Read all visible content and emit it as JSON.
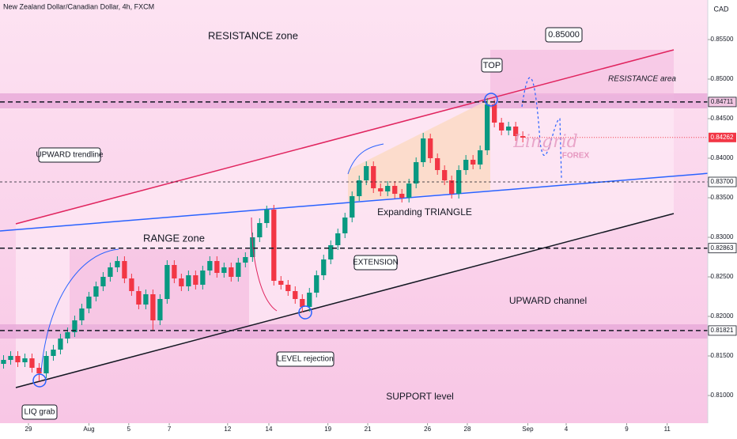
{
  "chart_data": {
    "type": "candlestick",
    "title": "New Zealand Dollar/Canadian Dollar, 4h, FXCM",
    "currency": "CAD",
    "xlim": [
      -0.5,
      99
    ],
    "ylim": [
      0.8065,
      0.86
    ],
    "xticks": [
      {
        "value": 3.5,
        "label": "29"
      },
      {
        "value": 12,
        "label": "Aug"
      },
      {
        "value": 17.6,
        "label": "5"
      },
      {
        "value": 23.3,
        "label": "7"
      },
      {
        "value": 31.5,
        "label": "12"
      },
      {
        "value": 37.3,
        "label": "14"
      },
      {
        "value": 45.6,
        "label": "19"
      },
      {
        "value": 51.2,
        "label": "21"
      },
      {
        "value": 59.6,
        "label": "26"
      },
      {
        "value": 65.2,
        "label": "28"
      },
      {
        "value": 73.7,
        "label": "Sep"
      },
      {
        "value": 79.1,
        "label": "4"
      },
      {
        "value": 87.6,
        "label": "9"
      },
      {
        "value": 93.3,
        "label": "11"
      }
    ],
    "yticks": [
      {
        "value": 0.855,
        "label": "0.85500"
      },
      {
        "value": 0.85,
        "label": "0.85000"
      },
      {
        "value": 0.845,
        "label": "0.84500"
      },
      {
        "value": 0.84,
        "label": "0.84000"
      },
      {
        "value": 0.835,
        "label": "0.83500"
      },
      {
        "value": 0.83,
        "label": "0.83000"
      },
      {
        "value": 0.825,
        "label": "0.82500"
      },
      {
        "value": 0.82,
        "label": "0.82000"
      },
      {
        "value": 0.815,
        "label": "0.81500"
      },
      {
        "value": 0.81,
        "label": "0.81000"
      }
    ],
    "levels": [
      {
        "value": 0.84711,
        "label": "0.84711"
      },
      {
        "value": 0.837,
        "label": "0.83700"
      },
      {
        "value": 0.82863,
        "label": "0.82863"
      },
      {
        "value": 0.81821,
        "label": "0.81821"
      }
    ],
    "current_price": {
      "value": 0.84262,
      "label": "0.84262"
    },
    "up_color": "#089981",
    "down_color": "#f23645",
    "open": [
      0.814,
      0.8145,
      0.815,
      0.8142,
      0.8147,
      0.8135,
      0.8128,
      0.815,
      0.8158,
      0.8172,
      0.818,
      0.8195,
      0.821,
      0.8225,
      0.8238,
      0.825,
      0.8262,
      0.827,
      0.8248,
      0.8232,
      0.8215,
      0.8228,
      0.8195,
      0.8222,
      0.8265,
      0.8248,
      0.8238,
      0.8252,
      0.824,
      0.8258,
      0.827,
      0.8255,
      0.8262,
      0.825,
      0.8268,
      0.8275,
      0.83,
      0.8318,
      0.8335,
      0.8245,
      0.824,
      0.8232,
      0.8222,
      0.8212,
      0.823,
      0.8252,
      0.8272,
      0.829,
      0.8305,
      0.8325,
      0.8352,
      0.8372,
      0.839,
      0.8362,
      0.8358,
      0.8365,
      0.8355,
      0.835,
      0.8368,
      0.8395,
      0.8425,
      0.84,
      0.8385,
      0.8372,
      0.8355,
      0.8385,
      0.8398,
      0.8392,
      0.841,
      0.8468,
      0.8445,
      0.8435,
      0.844,
      0.8428
    ],
    "high": [
      0.8151,
      0.8156,
      0.8156,
      0.8153,
      0.8153,
      0.8141,
      0.8156,
      0.8164,
      0.8178,
      0.8186,
      0.8201,
      0.8216,
      0.8231,
      0.8244,
      0.8256,
      0.8268,
      0.8276,
      0.8276,
      0.8254,
      0.8238,
      0.8234,
      0.8234,
      0.8228,
      0.8271,
      0.8271,
      0.8254,
      0.8258,
      0.8258,
      0.8264,
      0.8276,
      0.8276,
      0.8268,
      0.8268,
      0.8274,
      0.8281,
      0.8306,
      0.8324,
      0.834,
      0.8341,
      0.8251,
      0.8246,
      0.8238,
      0.8228,
      0.8236,
      0.8258,
      0.8278,
      0.8296,
      0.8311,
      0.8331,
      0.8358,
      0.8378,
      0.8396,
      0.8396,
      0.8368,
      0.8371,
      0.8371,
      0.8361,
      0.8374,
      0.8401,
      0.8432,
      0.8431,
      0.8406,
      0.8391,
      0.8378,
      0.8391,
      0.8404,
      0.8404,
      0.8416,
      0.8476,
      0.8474,
      0.8451,
      0.8446,
      0.8446,
      0.8434
    ],
    "low": [
      0.8134,
      0.8139,
      0.8136,
      0.8136,
      0.8129,
      0.8118,
      0.8122,
      0.8144,
      0.8152,
      0.8166,
      0.8174,
      0.8189,
      0.8204,
      0.8219,
      0.8232,
      0.8244,
      0.8256,
      0.8242,
      0.8226,
      0.8209,
      0.8209,
      0.8182,
      0.8189,
      0.8216,
      0.8242,
      0.8232,
      0.8232,
      0.8234,
      0.8234,
      0.8252,
      0.8249,
      0.8249,
      0.8244,
      0.8244,
      0.8262,
      0.8269,
      0.8294,
      0.8312,
      0.8239,
      0.8234,
      0.8226,
      0.8216,
      0.8205,
      0.8206,
      0.8224,
      0.8246,
      0.8266,
      0.8284,
      0.8299,
      0.8319,
      0.8346,
      0.8366,
      0.8356,
      0.8352,
      0.8352,
      0.8349,
      0.8344,
      0.8344,
      0.8362,
      0.8389,
      0.8394,
      0.8379,
      0.8366,
      0.8349,
      0.8349,
      0.8379,
      0.8386,
      0.8386,
      0.8404,
      0.8439,
      0.8429,
      0.8429,
      0.8422,
      0.842
    ],
    "close": [
      0.8145,
      0.815,
      0.8142,
      0.8147,
      0.8135,
      0.8128,
      0.815,
      0.8158,
      0.8172,
      0.818,
      0.8195,
      0.821,
      0.8225,
      0.8238,
      0.825,
      0.8262,
      0.827,
      0.8248,
      0.8232,
      0.8215,
      0.8228,
      0.8195,
      0.8222,
      0.8265,
      0.8248,
      0.8238,
      0.8252,
      0.824,
      0.8258,
      0.827,
      0.8255,
      0.8262,
      0.825,
      0.8268,
      0.8275,
      0.83,
      0.8318,
      0.8335,
      0.8245,
      0.824,
      0.8232,
      0.8222,
      0.8212,
      0.823,
      0.8252,
      0.8272,
      0.829,
      0.8305,
      0.8325,
      0.8352,
      0.8372,
      0.839,
      0.8362,
      0.8358,
      0.8365,
      0.8355,
      0.835,
      0.8368,
      0.8395,
      0.8425,
      0.84,
      0.8385,
      0.8372,
      0.8355,
      0.8385,
      0.8398,
      0.8392,
      0.841,
      0.8468,
      0.8445,
      0.8435,
      0.844,
      0.8428,
      0.8426
    ],
    "annotations": {
      "resistance_zone": "RESISTANCE zone",
      "target": "0.85000",
      "top": "TOP",
      "resistance_area": "RESISTANCE area",
      "upward_trendline": "UPWARD trendline",
      "range_zone": "RANGE zone",
      "expanding_triangle": "Expanding TRIANGLE",
      "extension": "EXTENSION",
      "upward_channel": "UPWARD channel",
      "level_rejection": "LEVEL rejection",
      "support_level": "SUPPORT level",
      "liq_grab": "LIQ grab",
      "watermark": "Lingrid",
      "watermark_sub": "FOREX"
    }
  }
}
